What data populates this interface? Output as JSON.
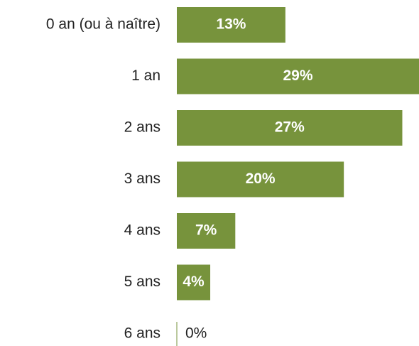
{
  "chart_data": {
    "type": "bar",
    "orientation": "horizontal",
    "categories": [
      "0 an (ou à naître)",
      "1 an",
      "2 ans",
      "3 ans",
      "4 ans",
      "5 ans",
      "6 ans"
    ],
    "values": [
      13,
      29,
      27,
      20,
      7,
      4,
      0
    ],
    "value_labels": [
      "13%",
      "29%",
      "27%",
      "20%",
      "7%",
      "4%",
      "0%"
    ],
    "color": "#77933c"
  }
}
